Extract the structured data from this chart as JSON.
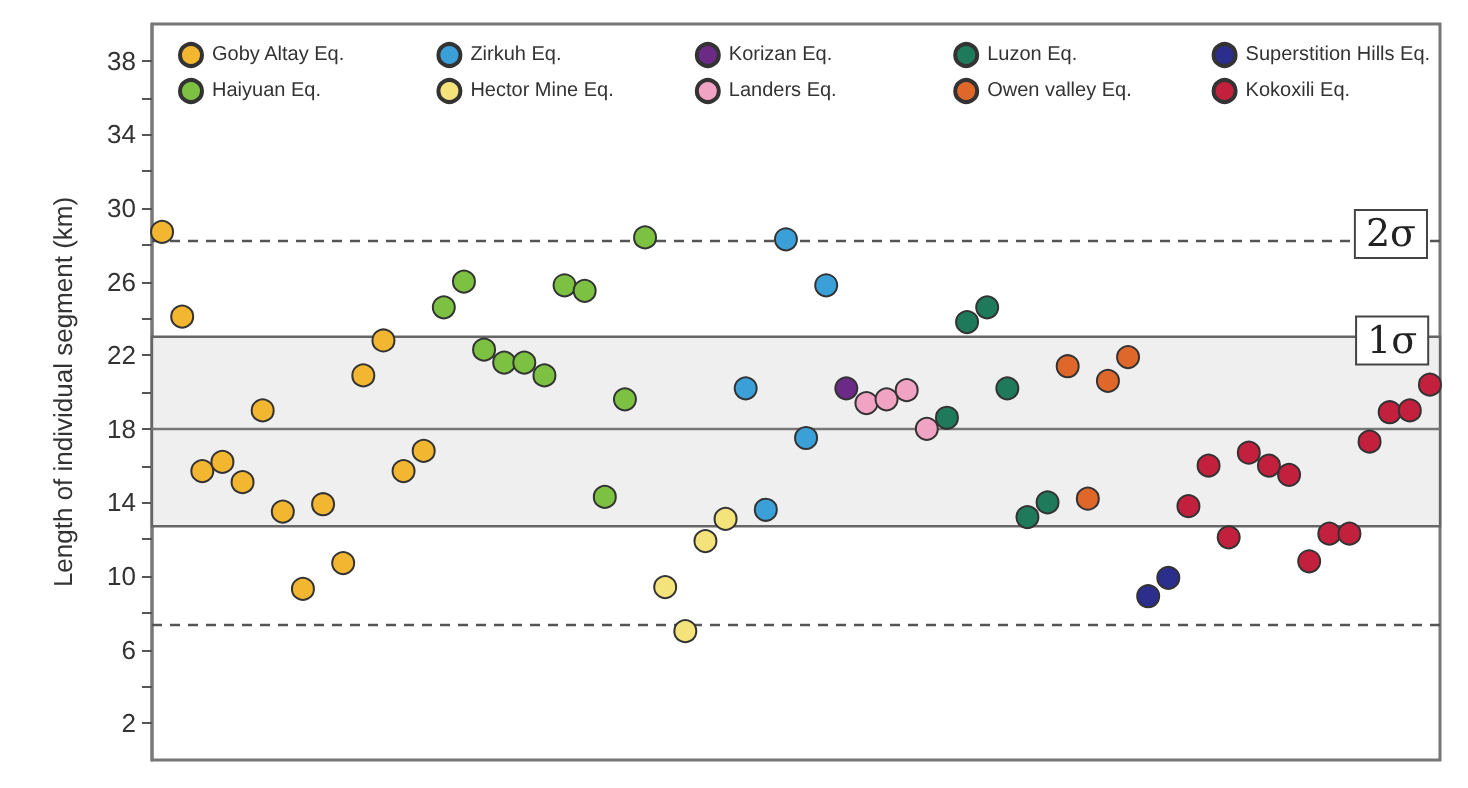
{
  "chart_data": {
    "type": "scatter",
    "ylabel": "Length of individual segment (km)",
    "categories": [
      null,
      null,
      null,
      null,
      null,
      null,
      null,
      null,
      null,
      null,
      null,
      null,
      null,
      null,
      null,
      null,
      null,
      null,
      null,
      null,
      null,
      null,
      null,
      null,
      null,
      null,
      null,
      null,
      null,
      null,
      null,
      null,
      null,
      null,
      null,
      null,
      null,
      null,
      null,
      null,
      null,
      null,
      null,
      null,
      null,
      null,
      null,
      null,
      null,
      null,
      null,
      null,
      null,
      null,
      null,
      null,
      null,
      null,
      null,
      null,
      null,
      null,
      null,
      null
    ],
    "series": [
      {
        "name": "Goby Altay Eq.",
        "color": "#f2b630",
        "values": [
          28.7,
          24.1,
          15.7,
          16.2,
          15.1,
          19.0,
          13.5,
          9.3,
          13.9,
          10.7,
          20.9,
          22.8,
          15.7,
          16.8,
          null,
          null,
          null,
          null,
          null,
          null,
          null,
          null,
          null,
          null,
          null,
          null,
          null,
          null,
          null,
          null,
          null,
          null,
          null,
          null,
          null,
          null,
          null,
          null,
          null,
          null,
          null,
          null,
          null,
          null,
          null,
          null,
          null,
          null,
          null,
          null,
          null,
          null,
          null,
          null,
          null,
          null,
          null,
          null,
          null,
          null,
          null,
          null,
          null,
          null
        ]
      },
      {
        "name": "Haiyuan Eq.",
        "color": "#7cc142",
        "values": [
          null,
          null,
          null,
          null,
          null,
          null,
          null,
          null,
          null,
          null,
          null,
          null,
          null,
          null,
          24.6,
          26.0,
          22.3,
          21.6,
          21.6,
          20.9,
          25.8,
          25.5,
          14.3,
          19.6,
          28.4,
          null,
          null,
          null,
          null,
          null,
          null,
          null,
          null,
          null,
          null,
          null,
          null,
          null,
          null,
          null,
          null,
          null,
          null,
          null,
          null,
          null,
          null,
          null,
          null,
          null,
          null,
          null,
          null,
          null,
          null,
          null,
          null,
          null,
          null,
          null,
          null,
          null,
          null,
          null
        ]
      },
      {
        "name": "Zirkuh Eq.",
        "color": "#3b9fd8",
        "values": [
          null,
          null,
          null,
          null,
          null,
          null,
          null,
          null,
          null,
          null,
          null,
          null,
          null,
          null,
          null,
          null,
          null,
          null,
          null,
          null,
          null,
          null,
          null,
          null,
          null,
          null,
          null,
          null,
          null,
          20.2,
          13.6,
          28.3,
          17.5,
          25.8,
          null,
          null,
          null,
          null,
          null,
          null,
          null,
          null,
          null,
          null,
          null,
          null,
          null,
          null,
          null,
          null,
          null,
          null,
          null,
          null,
          null,
          null,
          null,
          null,
          null,
          null,
          null,
          null,
          null,
          null
        ]
      },
      {
        "name": "Hector Mine Eq.",
        "color": "#f3e37a",
        "values": [
          null,
          null,
          null,
          null,
          null,
          null,
          null,
          null,
          null,
          null,
          null,
          null,
          null,
          null,
          null,
          null,
          null,
          null,
          null,
          null,
          null,
          null,
          null,
          null,
          null,
          9.4,
          7.0,
          11.9,
          13.1,
          null,
          null,
          null,
          null,
          null,
          null,
          null,
          null,
          null,
          null,
          null,
          null,
          null,
          null,
          null,
          null,
          null,
          null,
          null,
          null,
          null,
          null,
          null,
          null,
          null,
          null,
          null,
          null,
          null,
          null,
          null,
          null,
          null,
          null,
          null
        ]
      },
      {
        "name": "Korizan Eq.",
        "color": "#6b2a86",
        "values": [
          null,
          null,
          null,
          null,
          null,
          null,
          null,
          null,
          null,
          null,
          null,
          null,
          null,
          null,
          null,
          null,
          null,
          null,
          null,
          null,
          null,
          null,
          null,
          null,
          null,
          null,
          null,
          null,
          null,
          null,
          null,
          null,
          null,
          null,
          20.2,
          null,
          null,
          null,
          null,
          null,
          null,
          null,
          null,
          null,
          null,
          null,
          null,
          null,
          null,
          null,
          null,
          null,
          null,
          null,
          null,
          null,
          null,
          null,
          null,
          null,
          null,
          null,
          null,
          null
        ]
      },
      {
        "name": "Landers Eq.",
        "color": "#f1a3c3",
        "values": [
          null,
          null,
          null,
          null,
          null,
          null,
          null,
          null,
          null,
          null,
          null,
          null,
          null,
          null,
          null,
          null,
          null,
          null,
          null,
          null,
          null,
          null,
          null,
          null,
          null,
          null,
          null,
          null,
          null,
          null,
          null,
          null,
          null,
          null,
          null,
          19.4,
          19.6,
          20.1,
          18.0,
          null,
          null,
          null,
          null,
          null,
          null,
          null,
          null,
          null,
          null,
          null,
          null,
          null,
          null,
          null,
          null,
          null,
          null,
          null,
          null,
          null,
          null,
          null,
          null,
          null
        ]
      },
      {
        "name": "Luzon Eq.",
        "color": "#1f7a5c",
        "values": [
          null,
          null,
          null,
          null,
          null,
          null,
          null,
          null,
          null,
          null,
          null,
          null,
          null,
          null,
          null,
          null,
          null,
          null,
          null,
          null,
          null,
          null,
          null,
          null,
          null,
          null,
          null,
          null,
          null,
          null,
          null,
          null,
          null,
          null,
          null,
          null,
          null,
          null,
          null,
          18.6,
          23.8,
          24.6,
          20.2,
          13.2,
          14.0,
          null,
          null,
          null,
          null,
          null,
          null,
          null,
          null,
          null,
          null,
          null,
          null,
          null,
          null,
          null,
          null,
          null,
          null,
          null
        ]
      },
      {
        "name": "Owen valley Eq.",
        "color": "#e0672a",
        "values": [
          null,
          null,
          null,
          null,
          null,
          null,
          null,
          null,
          null,
          null,
          null,
          null,
          null,
          null,
          null,
          null,
          null,
          null,
          null,
          null,
          null,
          null,
          null,
          null,
          null,
          null,
          null,
          null,
          null,
          null,
          null,
          null,
          null,
          null,
          null,
          null,
          null,
          null,
          null,
          null,
          null,
          null,
          null,
          null,
          null,
          21.4,
          14.2,
          20.6,
          21.9,
          null,
          null,
          null,
          null,
          null,
          null,
          null,
          null,
          null,
          null,
          null,
          null,
          null,
          null,
          null
        ]
      },
      {
        "name": "Superstition Hills Eq.",
        "color": "#2b2e8c",
        "values": [
          null,
          null,
          null,
          null,
          null,
          null,
          null,
          null,
          null,
          null,
          null,
          null,
          null,
          null,
          null,
          null,
          null,
          null,
          null,
          null,
          null,
          null,
          null,
          null,
          null,
          null,
          null,
          null,
          null,
          null,
          null,
          null,
          null,
          null,
          null,
          null,
          null,
          null,
          null,
          null,
          null,
          null,
          null,
          null,
          null,
          null,
          null,
          null,
          null,
          8.9,
          9.9,
          null,
          null,
          null,
          null,
          null,
          null,
          null,
          null,
          null,
          null,
          null,
          null,
          null
        ]
      },
      {
        "name": "Kokoxili Eq.",
        "color": "#c3203e",
        "values": [
          null,
          null,
          null,
          null,
          null,
          null,
          null,
          null,
          null,
          null,
          null,
          null,
          null,
          null,
          null,
          null,
          null,
          null,
          null,
          null,
          null,
          null,
          null,
          null,
          null,
          null,
          null,
          null,
          null,
          null,
          null,
          null,
          null,
          null,
          null,
          null,
          null,
          null,
          null,
          null,
          null,
          null,
          null,
          null,
          null,
          null,
          null,
          null,
          null,
          null,
          null,
          13.8,
          16.0,
          12.1,
          16.7,
          16.0,
          15.5,
          10.8,
          12.3,
          12.3,
          17.3,
          18.9,
          19.0,
          20.4
        ]
      }
    ],
    "ylim": [
      0,
      40
    ],
    "yticks": [
      2,
      {
        "value": 4,
        "label": null
      },
      6,
      {
        "value": 8,
        "label": null
      },
      10,
      {
        "value": 12,
        "label": null
      },
      14,
      {
        "value": 16,
        "label": null
      },
      18,
      {
        "value": 20,
        "label": null
      },
      22,
      {
        "value": 24,
        "label": null
      },
      26,
      {
        "value": 28,
        "label": null
      },
      30,
      {
        "value": 32,
        "label": null
      },
      34,
      {
        "value": 36,
        "label": null
      },
      38
    ],
    "tick_labels": "y",
    "ref_lines": [
      {
        "axis": "y",
        "value": 28.2,
        "label": "2σ",
        "line_style": "dashed",
        "color": "#555555"
      },
      {
        "axis": "y",
        "value": 18.0,
        "label": null,
        "line_style": "solid",
        "color": "#777777"
      },
      {
        "axis": "y",
        "value": 7.4,
        "label": null,
        "line_style": "dashed",
        "color": "#555555"
      }
    ],
    "bands": [
      {
        "axis": "y",
        "from": 12.7,
        "to": 23.0,
        "label": "1σ",
        "color": "#efefef"
      }
    ],
    "marker": "circle",
    "grid": false,
    "legend": "top"
  }
}
